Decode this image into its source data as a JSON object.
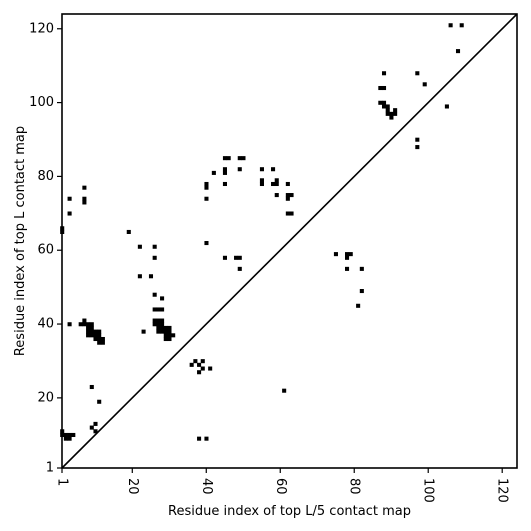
{
  "chart_data": {
    "type": "scatter",
    "title": "",
    "xlabel": "Residue index of top L/5 contact map",
    "ylabel": "Residue index of top L contact map",
    "xlim": [
      1,
      124
    ],
    "ylim": [
      1,
      124
    ],
    "x_ticks": [
      1,
      20,
      40,
      60,
      80,
      100,
      120
    ],
    "y_ticks": [
      1,
      20,
      40,
      60,
      80,
      100,
      120
    ],
    "x_tick_labels": [
      "1",
      "20",
      "40",
      "60",
      "80",
      "100",
      "120"
    ],
    "y_tick_labels": [
      "1",
      "20",
      "40",
      "60",
      "80",
      "100",
      "120"
    ],
    "x_tick_rotation": 90,
    "grid": false,
    "legend": "none",
    "diagonal": true,
    "marker": "square",
    "color": "#000000",
    "series": [
      {
        "points": [
          [
            1,
            66
          ],
          [
            1,
            65
          ],
          [
            1,
            11
          ],
          [
            1,
            10
          ],
          [
            2,
            10
          ],
          [
            2,
            9
          ],
          [
            3,
            10
          ],
          [
            3,
            9
          ],
          [
            4,
            10
          ],
          [
            3,
            74
          ],
          [
            3,
            70
          ],
          [
            3,
            40
          ],
          [
            7,
            77
          ],
          [
            7,
            74
          ],
          [
            7,
            73
          ],
          [
            6,
            40
          ],
          [
            7,
            41
          ],
          [
            7,
            40
          ],
          [
            8,
            40
          ],
          [
            8,
            39
          ],
          [
            8,
            38
          ],
          [
            8,
            37
          ],
          [
            9,
            40
          ],
          [
            9,
            39
          ],
          [
            9,
            38
          ],
          [
            9,
            37
          ],
          [
            10,
            38
          ],
          [
            10,
            37
          ],
          [
            10,
            36
          ],
          [
            11,
            38
          ],
          [
            11,
            37
          ],
          [
            11,
            36
          ],
          [
            11,
            35
          ],
          [
            12,
            36
          ],
          [
            12,
            35
          ],
          [
            9,
            23
          ],
          [
            11,
            19
          ],
          [
            9,
            12
          ],
          [
            10,
            13
          ],
          [
            10,
            11
          ],
          [
            19,
            65
          ],
          [
            22,
            61
          ],
          [
            22,
            53
          ],
          [
            23,
            38
          ],
          [
            25,
            53
          ],
          [
            26,
            61
          ],
          [
            26,
            58
          ],
          [
            26,
            48
          ],
          [
            26,
            44
          ],
          [
            26,
            41
          ],
          [
            26,
            40
          ],
          [
            27,
            44
          ],
          [
            27,
            41
          ],
          [
            27,
            40
          ],
          [
            27,
            39
          ],
          [
            27,
            38
          ],
          [
            28,
            47
          ],
          [
            28,
            44
          ],
          [
            28,
            41
          ],
          [
            28,
            40
          ],
          [
            28,
            39
          ],
          [
            28,
            38
          ],
          [
            29,
            39
          ],
          [
            29,
            38
          ],
          [
            29,
            37
          ],
          [
            29,
            36
          ],
          [
            30,
            39
          ],
          [
            30,
            38
          ],
          [
            30,
            37
          ],
          [
            30,
            36
          ],
          [
            31,
            37
          ],
          [
            36,
            29
          ],
          [
            37,
            30
          ],
          [
            38,
            29
          ],
          [
            38,
            27
          ],
          [
            39,
            30
          ],
          [
            39,
            28
          ],
          [
            41,
            28
          ],
          [
            38,
            9
          ],
          [
            40,
            9
          ],
          [
            40,
            78
          ],
          [
            40,
            77
          ],
          [
            40,
            74
          ],
          [
            40,
            62
          ],
          [
            42,
            81
          ],
          [
            45,
            85
          ],
          [
            45,
            82
          ],
          [
            45,
            81
          ],
          [
            45,
            78
          ],
          [
            46,
            85
          ],
          [
            45,
            58
          ],
          [
            48,
            58
          ],
          [
            49,
            58
          ],
          [
            49,
            55
          ],
          [
            49,
            85
          ],
          [
            50,
            85
          ],
          [
            49,
            82
          ],
          [
            55,
            82
          ],
          [
            55,
            79
          ],
          [
            55,
            78
          ],
          [
            58,
            82
          ],
          [
            58,
            78
          ],
          [
            59,
            79
          ],
          [
            59,
            78
          ],
          [
            59,
            75
          ],
          [
            62,
            78
          ],
          [
            62,
            75
          ],
          [
            62,
            74
          ],
          [
            63,
            75
          ],
          [
            62,
            70
          ],
          [
            63,
            70
          ],
          [
            61,
            22
          ],
          [
            75,
            59
          ],
          [
            78,
            59
          ],
          [
            79,
            59
          ],
          [
            78,
            58
          ],
          [
            78,
            55
          ],
          [
            82,
            55
          ],
          [
            81,
            45
          ],
          [
            82,
            49
          ],
          [
            88,
            108
          ],
          [
            87,
            104
          ],
          [
            88,
            104
          ],
          [
            87,
            100
          ],
          [
            88,
            100
          ],
          [
            88,
            99
          ],
          [
            89,
            99
          ],
          [
            89,
            98
          ],
          [
            89,
            97
          ],
          [
            90,
            97
          ],
          [
            90,
            96
          ],
          [
            91,
            98
          ],
          [
            91,
            97
          ],
          [
            97,
            108
          ],
          [
            99,
            105
          ],
          [
            97,
            90
          ],
          [
            97,
            88
          ],
          [
            105,
            99
          ],
          [
            106,
            121
          ],
          [
            109,
            121
          ],
          [
            108,
            114
          ]
        ]
      }
    ]
  }
}
